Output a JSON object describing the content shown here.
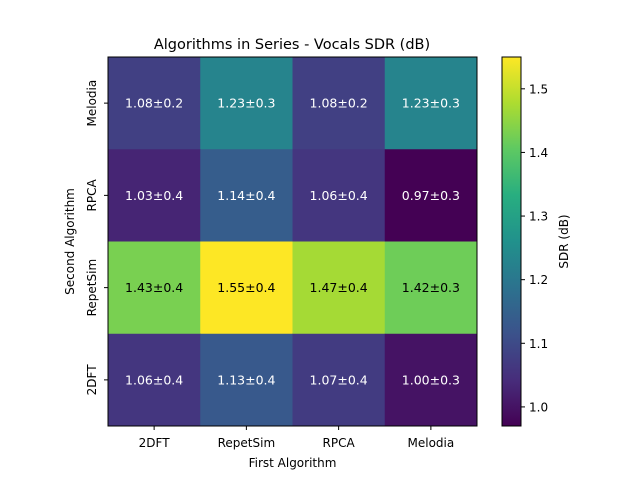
{
  "chart_data": {
    "type": "heatmap",
    "title": "Algorithms in Series - Vocals SDR (dB)",
    "xlabel": "First Algorithm",
    "ylabel": "Second Algorithm",
    "x_categories": [
      "2DFT",
      "RepetSim",
      "RPCA",
      "Melodia"
    ],
    "y_categories": [
      "Melodia",
      "RPCA",
      "RepetSim",
      "2DFT"
    ],
    "values": [
      [
        1.08,
        1.23,
        1.08,
        1.23
      ],
      [
        1.03,
        1.14,
        1.06,
        0.97
      ],
      [
        1.43,
        1.55,
        1.47,
        1.42
      ],
      [
        1.06,
        1.13,
        1.07,
        1.0
      ]
    ],
    "cell_labels": [
      [
        "1.08±0.2",
        "1.23±0.3",
        "1.08±0.2",
        "1.23±0.3"
      ],
      [
        "1.03±0.4",
        "1.14±0.4",
        "1.06±0.4",
        "0.97±0.3"
      ],
      [
        "1.43±0.4",
        "1.55±0.4",
        "1.47±0.4",
        "1.42±0.3"
      ],
      [
        "1.06±0.4",
        "1.13±0.4",
        "1.07±0.4",
        "1.00±0.3"
      ]
    ],
    "colormap": "viridis",
    "colorbar": {
      "label": "SDR (dB)",
      "range": [
        0.97,
        1.55
      ],
      "ticks": [
        "1.0",
        "1.1",
        "1.2",
        "1.3",
        "1.4",
        "1.5"
      ],
      "tick_values": [
        1.0,
        1.1,
        1.2,
        1.3,
        1.4,
        1.5
      ]
    }
  }
}
